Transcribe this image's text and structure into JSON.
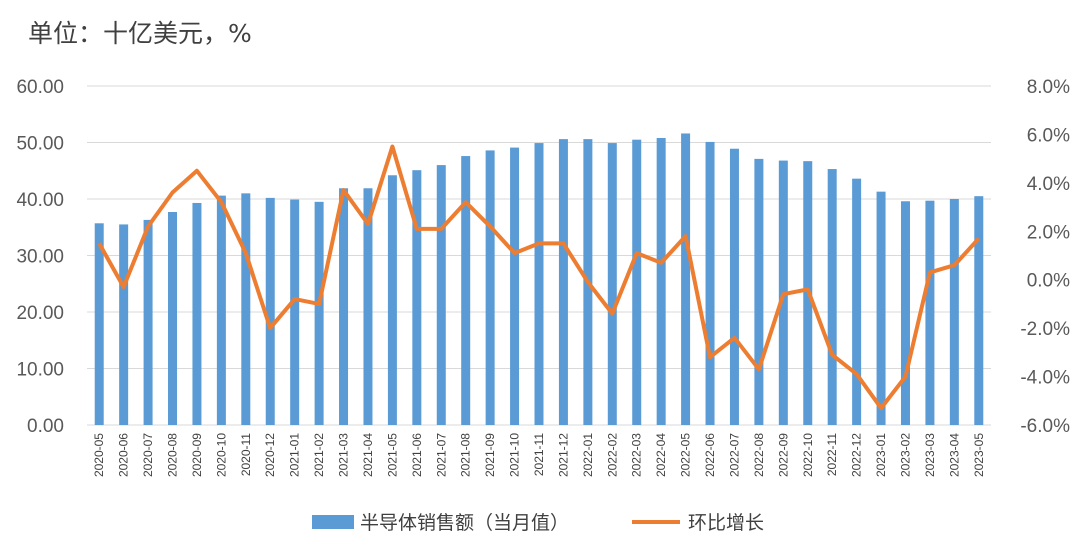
{
  "unit_label": "单位：十亿美元，%",
  "legend": {
    "bar_label": "半导体销售额（当月值）",
    "line_label": "环比增长"
  },
  "colors": {
    "bar": "#5B9BD5",
    "line": "#ED7D31",
    "grid": "#D9D9D9"
  },
  "chart_data": {
    "type": "bar",
    "categories": [
      "2020-05",
      "2020-06",
      "2020-07",
      "2020-08",
      "2020-09",
      "2020-10",
      "2020-11",
      "2020-12",
      "2021-01",
      "2021-02",
      "2021-03",
      "2021-04",
      "2021-05",
      "2021-06",
      "2021-07",
      "2021-08",
      "2021-09",
      "2021-10",
      "2021-11",
      "2021-12",
      "2022-01",
      "2022-02",
      "2022-03",
      "2022-04",
      "2022-05",
      "2022-06",
      "2022-07",
      "2022-08",
      "2022-09",
      "2022-10",
      "2022-11",
      "2022-12",
      "2023-01",
      "2023-02",
      "2023-03",
      "2023-04",
      "2023-05"
    ],
    "series": [
      {
        "name": "半导体销售额（当月值）",
        "type": "bar",
        "axis": "left",
        "values": [
          35.7,
          35.5,
          36.3,
          37.7,
          39.3,
          40.6,
          41.0,
          40.2,
          39.9,
          39.5,
          41.9,
          41.9,
          44.2,
          45.1,
          46.0,
          47.6,
          48.6,
          49.1,
          49.9,
          50.6,
          50.6,
          49.9,
          50.5,
          50.8,
          51.6,
          50.1,
          48.9,
          47.1,
          46.8,
          46.7,
          45.3,
          43.6,
          41.3,
          39.6,
          39.7,
          40.0,
          40.5
        ]
      },
      {
        "name": "环比增长",
        "type": "line",
        "axis": "right",
        "values": [
          1.5,
          -0.3,
          2.2,
          3.6,
          4.5,
          3.2,
          1.1,
          -2.0,
          -0.8,
          -1.0,
          3.7,
          2.3,
          5.5,
          2.1,
          2.1,
          3.2,
          2.2,
          1.1,
          1.5,
          1.5,
          -0.1,
          -1.4,
          1.1,
          0.7,
          1.8,
          -3.2,
          -2.4,
          -3.7,
          -0.6,
          -0.4,
          -3.1,
          -3.9,
          -5.3,
          -4.0,
          0.3,
          0.6,
          1.7
        ]
      }
    ],
    "y_left": {
      "ticks": [
        "0.00",
        "10.00",
        "20.00",
        "30.00",
        "40.00",
        "50.00",
        "60.00"
      ],
      "ylim": [
        0,
        60
      ]
    },
    "y_right": {
      "ticks": [
        "-6.0%",
        "-4.0%",
        "-2.0%",
        "0.0%",
        "2.0%",
        "4.0%",
        "6.0%",
        "8.0%"
      ],
      "ylim": [
        -6,
        8
      ]
    },
    "grid": true,
    "legend_position": "bottom"
  }
}
